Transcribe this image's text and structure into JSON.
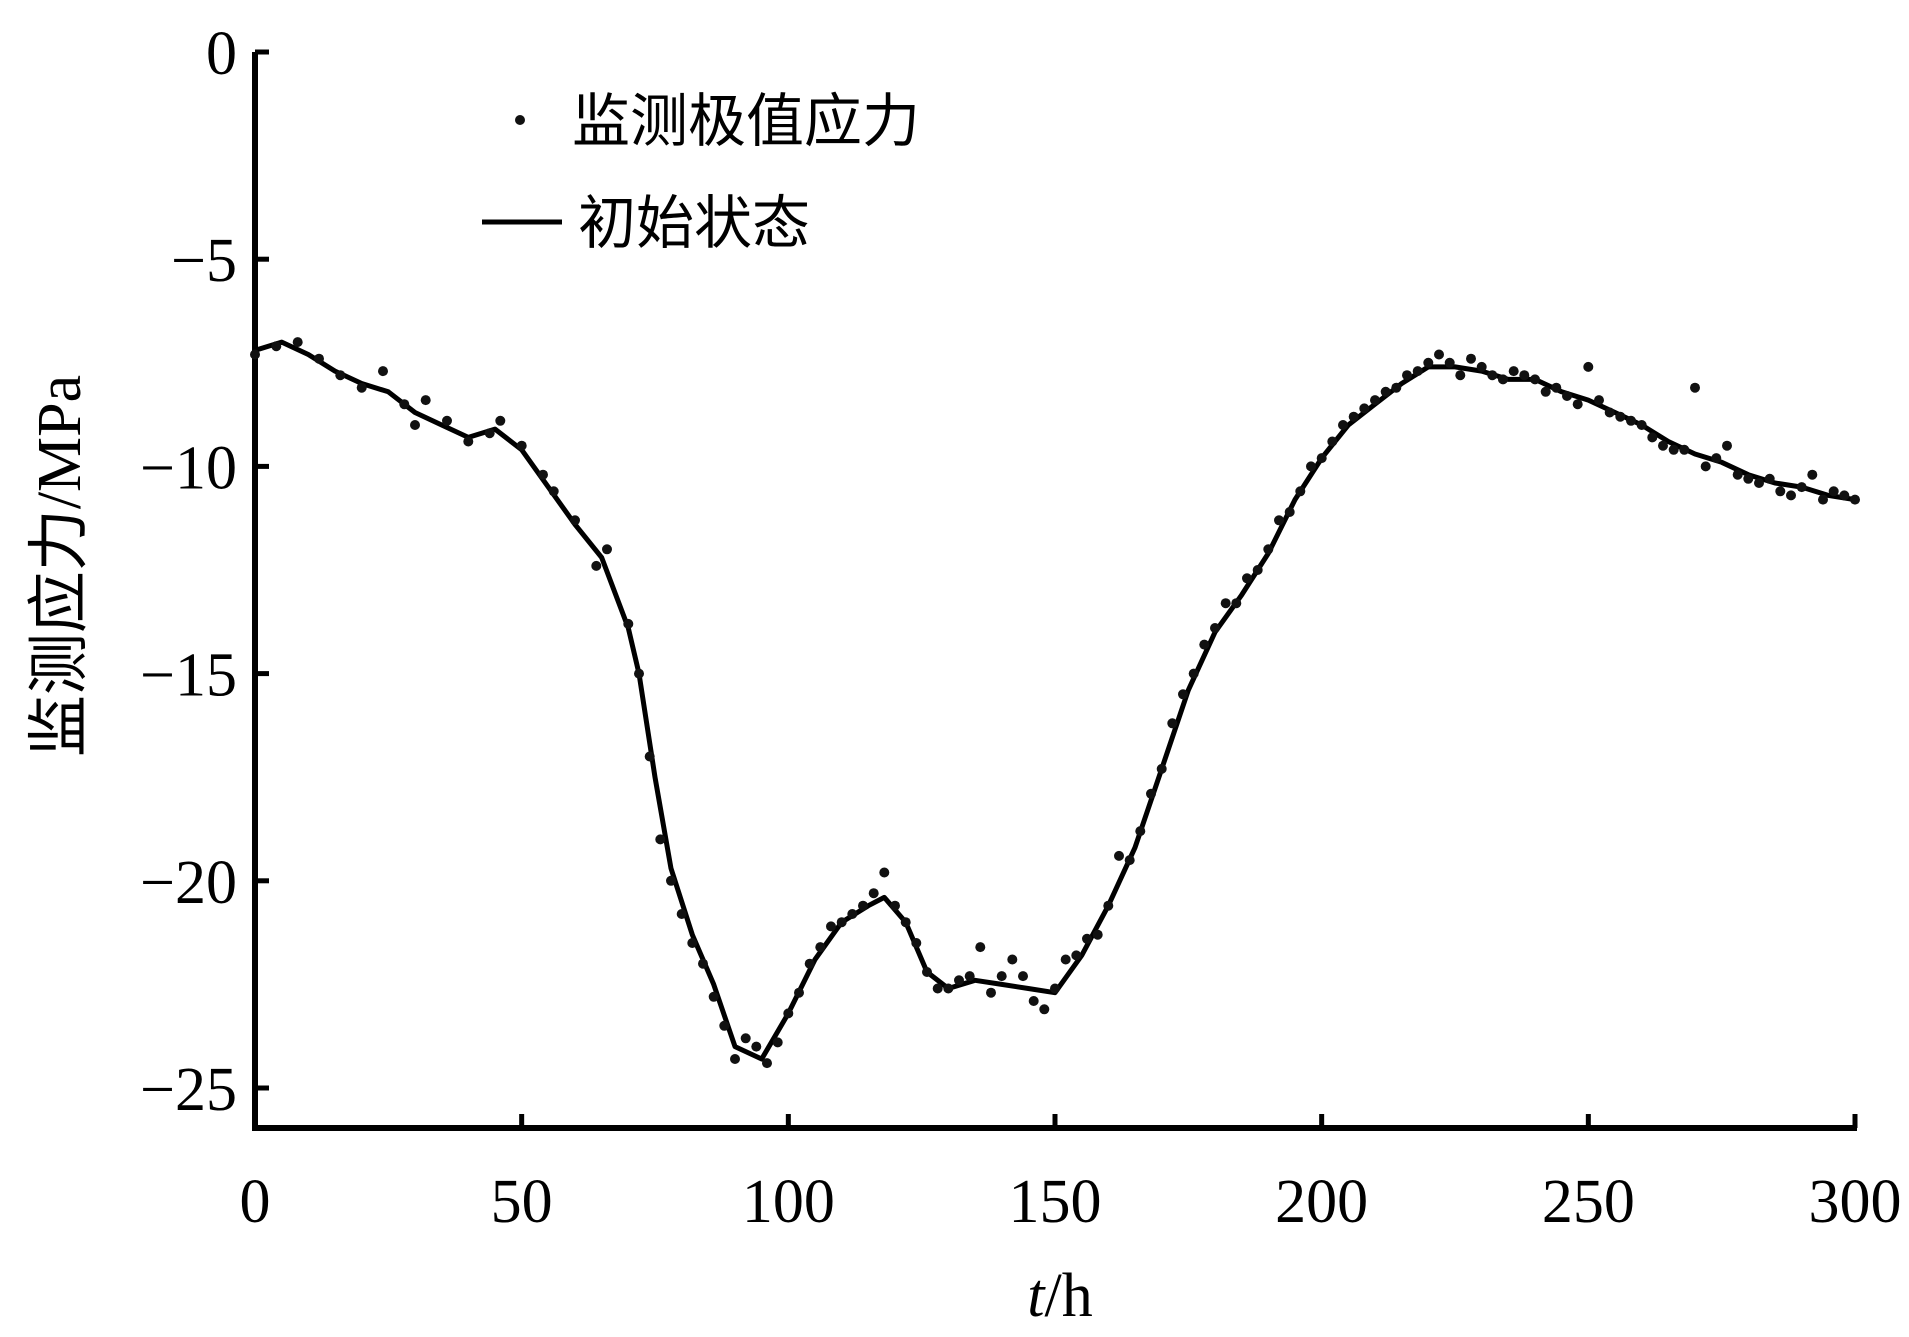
{
  "chart_data": {
    "type": "scatter",
    "xlabel_italic": "t",
    "xlabel_rest": "/h",
    "ylabel": "监测应力/MPa",
    "xlim": [
      0,
      300
    ],
    "ylim": [
      -26,
      0
    ],
    "xticks": [
      0,
      50,
      100,
      150,
      200,
      250,
      300
    ],
    "yticks": [
      0,
      -5,
      -10,
      -15,
      -20,
      -25
    ],
    "ytick_labels": [
      "0",
      "−5",
      "−10",
      "−15",
      "−20",
      "−25"
    ],
    "grid": false,
    "legend_position": "top-left",
    "colors": {
      "points": "#111111",
      "line": "#000000"
    },
    "series": [
      {
        "name": "监测极值应力",
        "kind": "points",
        "points": [
          [
            0,
            -7.3
          ],
          [
            4,
            -7.1
          ],
          [
            8,
            -7.0
          ],
          [
            12,
            -7.4
          ],
          [
            16,
            -7.8
          ],
          [
            20,
            -8.1
          ],
          [
            24,
            -7.7
          ],
          [
            28,
            -8.5
          ],
          [
            30,
            -9.0
          ],
          [
            32,
            -8.4
          ],
          [
            36,
            -8.9
          ],
          [
            40,
            -9.4
          ],
          [
            44,
            -9.2
          ],
          [
            46,
            -8.9
          ],
          [
            50,
            -9.5
          ],
          [
            54,
            -10.2
          ],
          [
            56,
            -10.6
          ],
          [
            60,
            -11.3
          ],
          [
            64,
            -12.4
          ],
          [
            66,
            -12.0
          ],
          [
            70,
            -13.8
          ],
          [
            72,
            -15.0
          ],
          [
            74,
            -17.0
          ],
          [
            76,
            -19.0
          ],
          [
            78,
            -20.0
          ],
          [
            80,
            -20.8
          ],
          [
            82,
            -21.5
          ],
          [
            84,
            -22.0
          ],
          [
            86,
            -22.8
          ],
          [
            88,
            -23.5
          ],
          [
            90,
            -24.3
          ],
          [
            92,
            -23.8
          ],
          [
            94,
            -24.0
          ],
          [
            96,
            -24.4
          ],
          [
            98,
            -23.9
          ],
          [
            100,
            -23.2
          ],
          [
            102,
            -22.7
          ],
          [
            104,
            -22.0
          ],
          [
            106,
            -21.6
          ],
          [
            108,
            -21.1
          ],
          [
            110,
            -21.0
          ],
          [
            112,
            -20.8
          ],
          [
            114,
            -20.6
          ],
          [
            116,
            -20.3
          ],
          [
            118,
            -19.8
          ],
          [
            120,
            -20.6
          ],
          [
            122,
            -21.0
          ],
          [
            124,
            -21.5
          ],
          [
            126,
            -22.2
          ],
          [
            128,
            -22.6
          ],
          [
            130,
            -22.6
          ],
          [
            132,
            -22.4
          ],
          [
            134,
            -22.3
          ],
          [
            136,
            -21.6
          ],
          [
            138,
            -22.7
          ],
          [
            140,
            -22.3
          ],
          [
            142,
            -21.9
          ],
          [
            144,
            -22.3
          ],
          [
            146,
            -22.9
          ],
          [
            148,
            -23.1
          ],
          [
            150,
            -22.6
          ],
          [
            152,
            -21.9
          ],
          [
            154,
            -21.8
          ],
          [
            156,
            -21.4
          ],
          [
            158,
            -21.3
          ],
          [
            160,
            -20.6
          ],
          [
            162,
            -19.4
          ],
          [
            164,
            -19.5
          ],
          [
            166,
            -18.8
          ],
          [
            168,
            -17.9
          ],
          [
            170,
            -17.3
          ],
          [
            172,
            -16.2
          ],
          [
            174,
            -15.5
          ],
          [
            176,
            -15.0
          ],
          [
            178,
            -14.3
          ],
          [
            180,
            -13.9
          ],
          [
            182,
            -13.3
          ],
          [
            184,
            -13.3
          ],
          [
            186,
            -12.7
          ],
          [
            188,
            -12.5
          ],
          [
            190,
            -12.0
          ],
          [
            192,
            -11.3
          ],
          [
            194,
            -11.1
          ],
          [
            196,
            -10.6
          ],
          [
            198,
            -10.0
          ],
          [
            200,
            -9.8
          ],
          [
            202,
            -9.4
          ],
          [
            204,
            -9.0
          ],
          [
            206,
            -8.8
          ],
          [
            208,
            -8.6
          ],
          [
            210,
            -8.4
          ],
          [
            212,
            -8.2
          ],
          [
            214,
            -8.1
          ],
          [
            216,
            -7.8
          ],
          [
            218,
            -7.7
          ],
          [
            220,
            -7.5
          ],
          [
            222,
            -7.3
          ],
          [
            224,
            -7.5
          ],
          [
            226,
            -7.8
          ],
          [
            228,
            -7.4
          ],
          [
            230,
            -7.6
          ],
          [
            232,
            -7.8
          ],
          [
            234,
            -7.9
          ],
          [
            236,
            -7.7
          ],
          [
            238,
            -7.8
          ],
          [
            240,
            -7.9
          ],
          [
            242,
            -8.2
          ],
          [
            244,
            -8.1
          ],
          [
            246,
            -8.3
          ],
          [
            248,
            -8.5
          ],
          [
            250,
            -7.6
          ],
          [
            252,
            -8.4
          ],
          [
            254,
            -8.7
          ],
          [
            256,
            -8.8
          ],
          [
            258,
            -8.9
          ],
          [
            260,
            -9.0
          ],
          [
            262,
            -9.3
          ],
          [
            264,
            -9.5
          ],
          [
            266,
            -9.6
          ],
          [
            268,
            -9.6
          ],
          [
            270,
            -8.1
          ],
          [
            272,
            -10.0
          ],
          [
            274,
            -9.8
          ],
          [
            276,
            -9.5
          ],
          [
            278,
            -10.2
          ],
          [
            280,
            -10.3
          ],
          [
            282,
            -10.4
          ],
          [
            284,
            -10.3
          ],
          [
            286,
            -10.6
          ],
          [
            288,
            -10.7
          ],
          [
            290,
            -10.5
          ],
          [
            292,
            -10.2
          ],
          [
            294,
            -10.8
          ],
          [
            296,
            -10.6
          ],
          [
            298,
            -10.7
          ],
          [
            300,
            -10.8
          ]
        ]
      },
      {
        "name": "初始状态",
        "kind": "line",
        "points": [
          [
            0,
            -7.2
          ],
          [
            5,
            -7.0
          ],
          [
            10,
            -7.3
          ],
          [
            15,
            -7.7
          ],
          [
            20,
            -8.0
          ],
          [
            25,
            -8.2
          ],
          [
            30,
            -8.7
          ],
          [
            35,
            -9.0
          ],
          [
            40,
            -9.3
          ],
          [
            45,
            -9.1
          ],
          [
            50,
            -9.6
          ],
          [
            55,
            -10.5
          ],
          [
            60,
            -11.4
          ],
          [
            65,
            -12.2
          ],
          [
            70,
            -13.9
          ],
          [
            72,
            -15.0
          ],
          [
            75,
            -17.5
          ],
          [
            78,
            -19.7
          ],
          [
            82,
            -21.3
          ],
          [
            86,
            -22.5
          ],
          [
            90,
            -24.0
          ],
          [
            95,
            -24.3
          ],
          [
            100,
            -23.2
          ],
          [
            105,
            -21.9
          ],
          [
            110,
            -21.0
          ],
          [
            115,
            -20.6
          ],
          [
            118,
            -20.4
          ],
          [
            122,
            -21.0
          ],
          [
            126,
            -22.2
          ],
          [
            130,
            -22.6
          ],
          [
            135,
            -22.4
          ],
          [
            140,
            -22.5
          ],
          [
            145,
            -22.6
          ],
          [
            150,
            -22.7
          ],
          [
            155,
            -21.8
          ],
          [
            160,
            -20.6
          ],
          [
            165,
            -19.2
          ],
          [
            170,
            -17.3
          ],
          [
            175,
            -15.4
          ],
          [
            180,
            -14.0
          ],
          [
            185,
            -13.1
          ],
          [
            190,
            -12.1
          ],
          [
            195,
            -10.8
          ],
          [
            200,
            -9.8
          ],
          [
            205,
            -9.0
          ],
          [
            210,
            -8.5
          ],
          [
            215,
            -8.0
          ],
          [
            220,
            -7.6
          ],
          [
            225,
            -7.6
          ],
          [
            230,
            -7.7
          ],
          [
            235,
            -7.9
          ],
          [
            240,
            -7.9
          ],
          [
            245,
            -8.2
          ],
          [
            250,
            -8.4
          ],
          [
            255,
            -8.7
          ],
          [
            260,
            -9.0
          ],
          [
            265,
            -9.4
          ],
          [
            270,
            -9.7
          ],
          [
            275,
            -9.9
          ],
          [
            280,
            -10.2
          ],
          [
            285,
            -10.4
          ],
          [
            290,
            -10.5
          ],
          [
            295,
            -10.7
          ],
          [
            300,
            -10.8
          ]
        ]
      }
    ]
  }
}
